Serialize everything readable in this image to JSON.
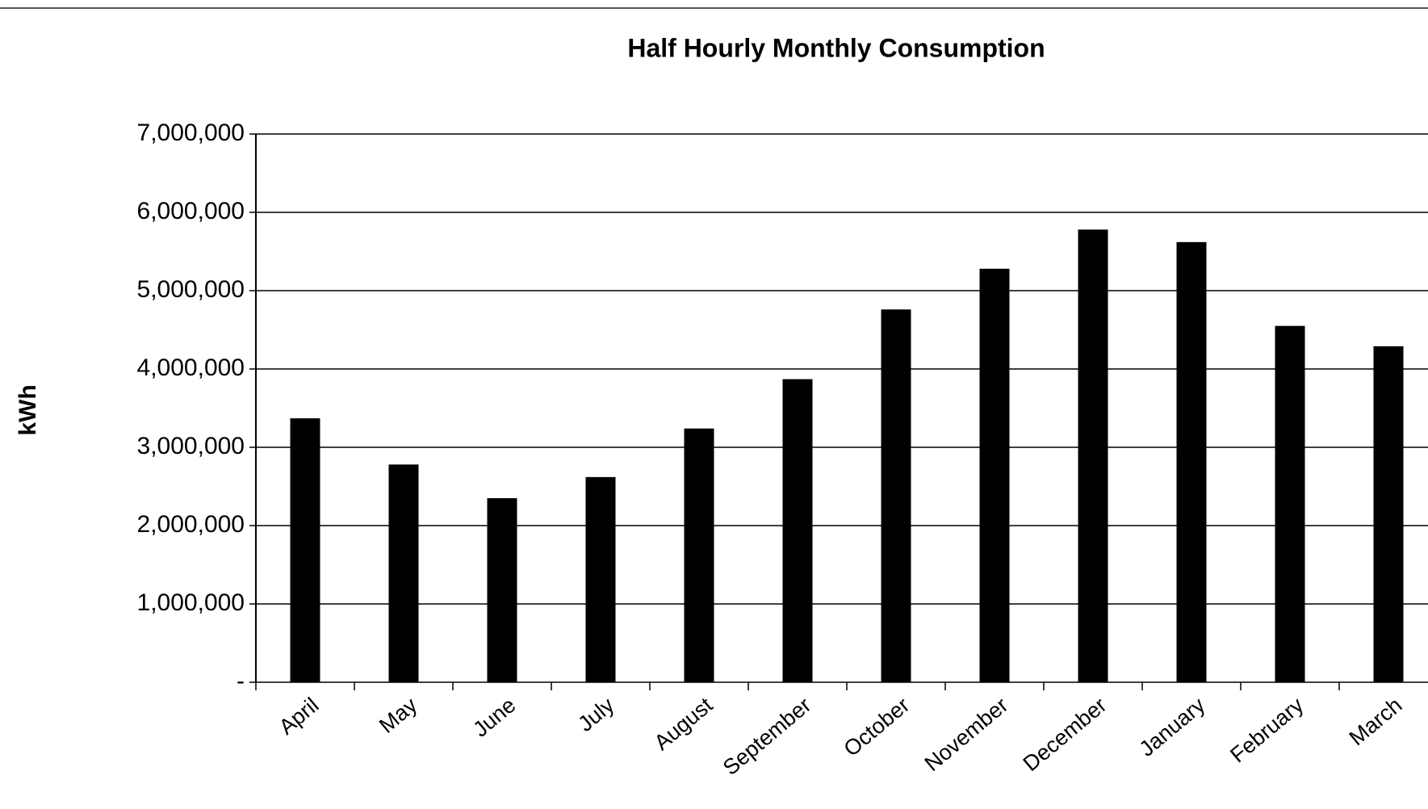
{
  "chart_data": {
    "type": "bar",
    "title": "Half Hourly Monthly Consumption",
    "y_label": "kWh",
    "categories": [
      "April",
      "May",
      "June",
      "July",
      "August",
      "September",
      "October",
      "November",
      "December",
      "January",
      "February",
      "March"
    ],
    "values": [
      3370000,
      2780000,
      2350000,
      2620000,
      3240000,
      3870000,
      4760000,
      5280000,
      5780000,
      5620000,
      4550000,
      4290000
    ],
    "color": "#000000",
    "ylim": [
      0,
      7000000
    ],
    "yticks": [
      {
        "value": 0,
        "label": "-"
      },
      {
        "value": 1000000,
        "label": "1,000,000"
      },
      {
        "value": 2000000,
        "label": "2,000,000"
      },
      {
        "value": 3000000,
        "label": "3,000,000"
      },
      {
        "value": 4000000,
        "label": "4,000,000"
      },
      {
        "value": 5000000,
        "label": "5,000,000"
      },
      {
        "value": 6000000,
        "label": "6,000,000"
      },
      {
        "value": 7000000,
        "label": "7,000,000"
      }
    ],
    "grid": true
  }
}
